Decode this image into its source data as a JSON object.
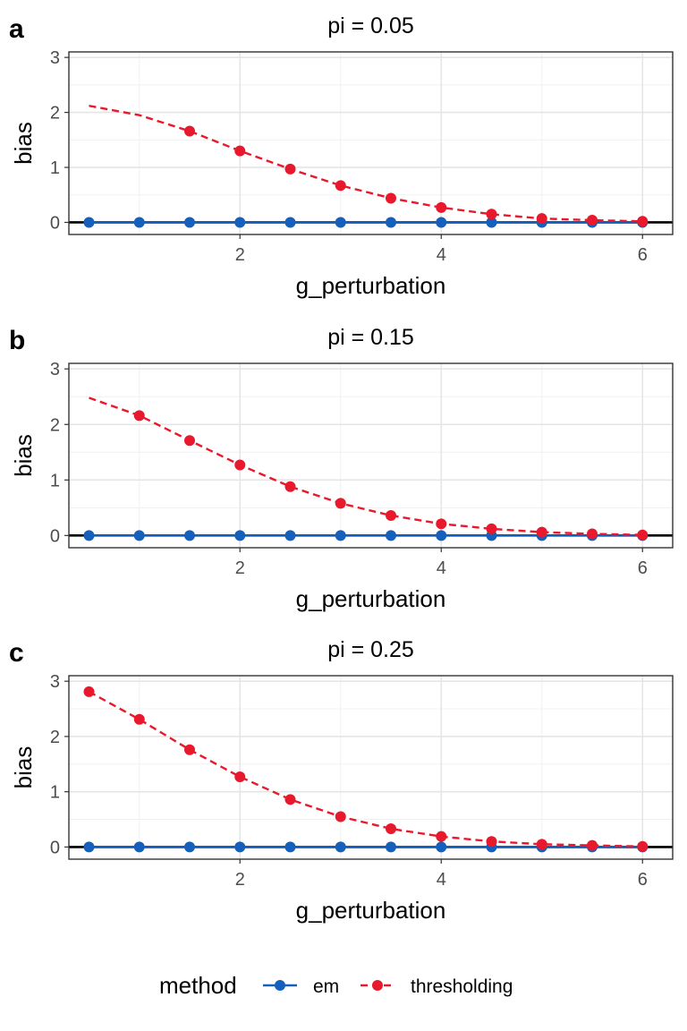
{
  "colors": {
    "em": "#1560bd",
    "thresholding": "#e8192c"
  },
  "legend": {
    "title": "method",
    "items": [
      {
        "key": "em",
        "label": "em",
        "line": "solid"
      },
      {
        "key": "thresholding",
        "label": "thresholding",
        "line": "dashed"
      }
    ]
  },
  "chart_data": [
    {
      "type": "line",
      "panel_letter": "a",
      "title": "pi = 0.05",
      "xlabel": "g_perturbation",
      "ylabel": "bias",
      "xlim": [
        0.3,
        6.3
      ],
      "ylim": [
        -0.22,
        3.1
      ],
      "xticks": [
        2,
        4,
        6
      ],
      "yticks": [
        0,
        1,
        2,
        3
      ],
      "grid": true,
      "hline": 0,
      "x": [
        0.5,
        1,
        1.5,
        2,
        2.5,
        3,
        3.5,
        4,
        4.5,
        5,
        5.5,
        6
      ],
      "series": [
        {
          "name": "em",
          "color_key": "em",
          "line": "solid",
          "markers": true,
          "values": [
            0,
            0,
            0,
            0,
            0,
            0,
            0,
            0,
            0,
            0,
            0,
            0
          ]
        },
        {
          "name": "thresholding",
          "color_key": "thresholding",
          "line": "dashed",
          "markers": true,
          "missing_marker_x": [
            0.5,
            1.0
          ],
          "values": [
            2.12,
            1.95,
            1.66,
            1.3,
            0.97,
            0.67,
            0.44,
            0.27,
            0.15,
            0.07,
            0.04,
            0.02
          ]
        }
      ]
    },
    {
      "type": "line",
      "panel_letter": "b",
      "title": "pi = 0.15",
      "xlabel": "g_perturbation",
      "ylabel": "bias",
      "xlim": [
        0.3,
        6.3
      ],
      "ylim": [
        -0.22,
        3.1
      ],
      "xticks": [
        2,
        4,
        6
      ],
      "yticks": [
        0,
        1,
        2,
        3
      ],
      "grid": true,
      "hline": 0,
      "x": [
        0.5,
        1,
        1.5,
        2,
        2.5,
        3,
        3.5,
        4,
        4.5,
        5,
        5.5,
        6
      ],
      "series": [
        {
          "name": "em",
          "color_key": "em",
          "line": "solid",
          "markers": true,
          "values": [
            0,
            0,
            0,
            0,
            0,
            0,
            0,
            0,
            0,
            0,
            0,
            0
          ]
        },
        {
          "name": "thresholding",
          "color_key": "thresholding",
          "line": "dashed",
          "markers": true,
          "missing_marker_x": [
            0.5
          ],
          "values": [
            2.48,
            2.16,
            1.71,
            1.27,
            0.88,
            0.58,
            0.36,
            0.21,
            0.12,
            0.06,
            0.03,
            0.01
          ]
        }
      ]
    },
    {
      "type": "line",
      "panel_letter": "c",
      "title": "pi = 0.25",
      "xlabel": "g_perturbation",
      "ylabel": "bias",
      "xlim": [
        0.3,
        6.3
      ],
      "ylim": [
        -0.22,
        3.1
      ],
      "xticks": [
        2,
        4,
        6
      ],
      "yticks": [
        0,
        1,
        2,
        3
      ],
      "grid": true,
      "hline": 0,
      "x": [
        0.5,
        1,
        1.5,
        2,
        2.5,
        3,
        3.5,
        4,
        4.5,
        5,
        5.5,
        6
      ],
      "series": [
        {
          "name": "em",
          "color_key": "em",
          "line": "solid",
          "markers": true,
          "values": [
            0,
            0,
            0,
            0,
            0,
            0,
            0,
            0,
            0,
            0,
            0,
            0
          ]
        },
        {
          "name": "thresholding",
          "color_key": "thresholding",
          "line": "dashed",
          "markers": true,
          "missing_marker_x": [],
          "values": [
            2.81,
            2.31,
            1.76,
            1.27,
            0.86,
            0.55,
            0.33,
            0.19,
            0.1,
            0.05,
            0.03,
            0.01
          ]
        }
      ]
    }
  ]
}
